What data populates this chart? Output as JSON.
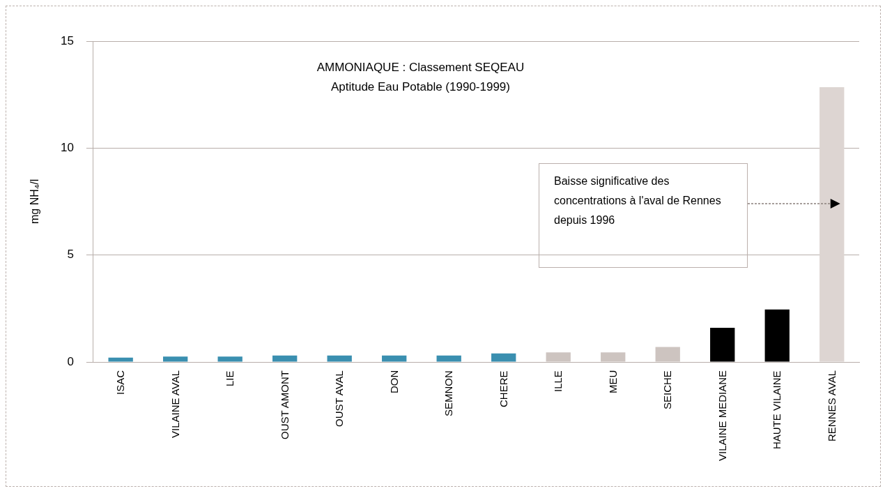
{
  "chart_data": {
    "type": "bar",
    "title": "AMMONIAQUE : Classement SEQEAU",
    "subtitle": "Aptitude Eau Potable (1990-1999)",
    "ylabel": "mg NH₄/l",
    "categories": [
      "ISAC",
      "VILAINE AVAL",
      "LIE",
      "OUST AMONT",
      "OUST AVAL",
      "DON",
      "SEMNON",
      "CHERE",
      "ILLE",
      "MEU",
      "SEICHE",
      "VILAINE MEDIANE",
      "HAUTE VILAINE",
      "RENNES AVAL"
    ],
    "values": [
      0.2,
      0.25,
      0.25,
      0.3,
      0.3,
      0.3,
      0.3,
      0.4,
      0.45,
      0.45,
      0.7,
      1.6,
      2.45,
      12.85
    ],
    "colors": [
      "#3a8fb0",
      "#3a8fb0",
      "#3a8fb0",
      "#3a8fb0",
      "#3a8fb0",
      "#3a8fb0",
      "#3a8fb0",
      "#3a8fb0",
      "#cdc4c0",
      "#cdc4c0",
      "#cdc4c0",
      "#000000",
      "#000000",
      "#ddd5d2"
    ],
    "ylim": [
      0,
      15
    ],
    "yticks": [
      0,
      5,
      10,
      15
    ],
    "grid": "y",
    "legend": false,
    "annotations": [
      "Baisse significative des concentrations à l'aval de Rennes depuis 1996"
    ]
  }
}
